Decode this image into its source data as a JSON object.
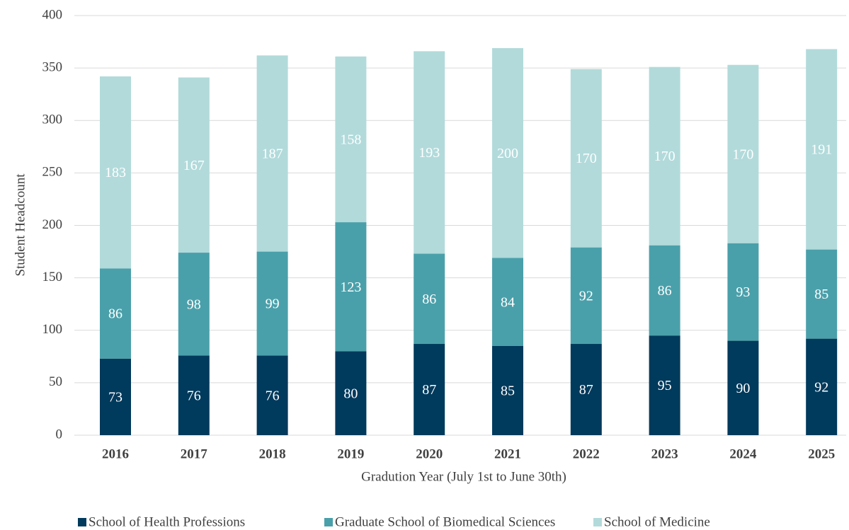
{
  "chart_data": {
    "type": "stacked_bar",
    "x_label": "Gradution Year (July 1st to June 30th)",
    "y_label": "Student Headcount",
    "categories": [
      "2016",
      "2017",
      "2018",
      "2019",
      "2020",
      "2021",
      "2022",
      "2023",
      "2024",
      "2025"
    ],
    "series": [
      {
        "name": "School of Health Professions",
        "color": "#003a5c",
        "values": [
          73,
          76,
          76,
          80,
          87,
          85,
          87,
          95,
          90,
          92
        ]
      },
      {
        "name": "Graduate School of Biomedical Sciences",
        "color": "#4aa0aa",
        "values": [
          86,
          98,
          99,
          123,
          86,
          84,
          92,
          86,
          93,
          85
        ]
      },
      {
        "name": "School of Medicine",
        "color": "#b2dadb",
        "values": [
          183,
          167,
          187,
          158,
          193,
          200,
          170,
          170,
          170,
          191
        ]
      }
    ],
    "ylim": [
      0,
      400
    ],
    "yticks": [
      0,
      50,
      100,
      150,
      200,
      250,
      300,
      350,
      400
    ],
    "grid": true,
    "legend": "bottom"
  }
}
